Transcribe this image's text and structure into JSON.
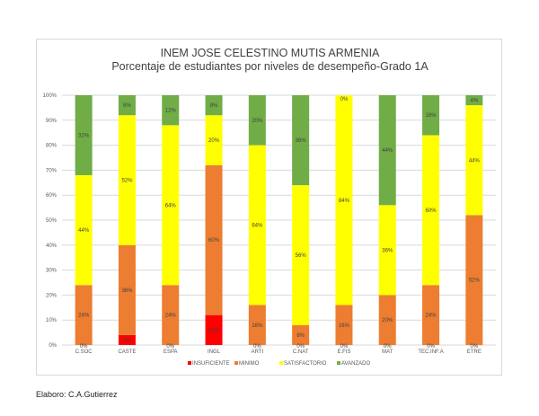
{
  "footer": {
    "credit": "Elaboro: C.A.Gutierrez"
  },
  "chart_data": {
    "type": "bar",
    "stacked": true,
    "title": "INEM JOSE CELESTINO  MUTIS ARMENIA",
    "subtitle": "Porcentaje  de estudiantes  por niveles de desempeño-Grado  1A",
    "xlabel": "",
    "ylabel": "",
    "ylim": [
      0,
      100
    ],
    "yticks": [
      "0%",
      "10%",
      "20%",
      "30%",
      "40%",
      "50%",
      "60%",
      "70%",
      "80%",
      "90%",
      "100%"
    ],
    "grid": true,
    "legend_position": "bottom",
    "categories": [
      "C.SOC",
      "CASTE",
      "ESPA",
      "INGL",
      "ARTI",
      "C.NAT",
      "E.FIS",
      "MAT",
      "TEC.INF.A",
      "ETRE"
    ],
    "series": [
      {
        "name": "INSUFICIENTE",
        "color": "#ff0000",
        "values": [
          0,
          4,
          0,
          12,
          0,
          0,
          0,
          0,
          0,
          0
        ],
        "labels": [
          "0%",
          "4%",
          "0%",
          "12%",
          "0%",
          "0%",
          "0%",
          "0%",
          "0%",
          "0%"
        ]
      },
      {
        "name": "MINIMO",
        "color": "#ed7d31",
        "values": [
          24,
          36,
          24,
          60,
          16,
          8,
          16,
          20,
          24,
          52
        ],
        "labels": [
          "24%",
          "36%",
          "24%",
          "60%",
          "16%",
          "8%",
          "16%",
          "20%",
          "24%",
          "52%"
        ]
      },
      {
        "name": "SATISFACTORIO",
        "color": "#ffff00",
        "values": [
          44,
          52,
          64,
          20,
          64,
          56,
          84,
          36,
          60,
          44
        ],
        "labels": [
          "44%",
          "52%",
          "64%",
          "20%",
          "64%",
          "56%",
          "84%",
          "36%",
          "60%",
          "44%"
        ]
      },
      {
        "name": "AVANZADO",
        "color": "#70ad47",
        "values": [
          32,
          8,
          12,
          8,
          20,
          36,
          0,
          44,
          16,
          4
        ],
        "labels": [
          "32%",
          "8%",
          "12%",
          "8%",
          "20%",
          "36%",
          "0%",
          "44%",
          "16%",
          "4%"
        ]
      }
    ]
  }
}
